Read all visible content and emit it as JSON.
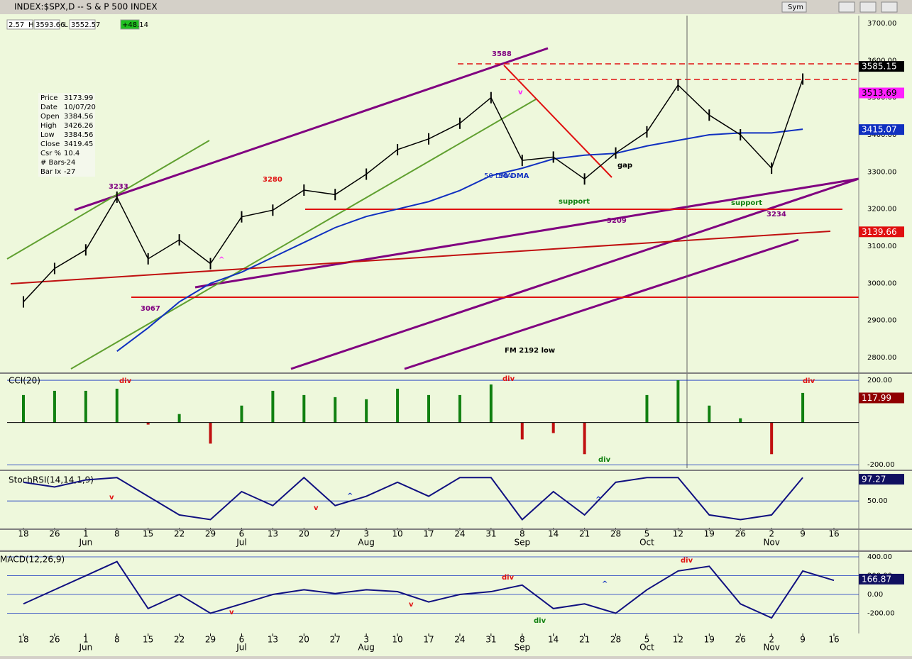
{
  "header": {
    "title": "INDEX:$SPX,D -- S & P 500 INDEX",
    "quote": [
      "2.57",
      "H",
      "3593.66",
      "L",
      "3552.57",
      "+48.14"
    ],
    "buttons": [
      "Sym"
    ]
  },
  "info_box": {
    "rows": [
      [
        "Price",
        "3173.99"
      ],
      [
        "Date",
        "10/07/20"
      ],
      [
        "Open",
        "3384.56"
      ],
      [
        "High",
        "3426.26"
      ],
      [
        "Low",
        "3384.56"
      ],
      [
        "Close",
        "3419.45"
      ],
      [
        "Csr %",
        "10.4"
      ],
      [
        "# Bars",
        "-24"
      ],
      [
        "Bar Ix",
        "-27"
      ]
    ]
  },
  "chart_data": [
    {
      "type": "line",
      "categories": [
        "18",
        "26",
        "1",
        "8",
        "15",
        "22",
        "29",
        "6",
        "13",
        "20",
        "27",
        "3",
        "10",
        "17",
        "24",
        "31",
        "8",
        "14",
        "21",
        "28",
        "5",
        "12",
        "19",
        "26",
        "2",
        "9",
        "16"
      ],
      "months": [
        {
          "category": 2,
          "label": "Jun"
        },
        {
          "category": 7,
          "label": "Jul"
        },
        {
          "category": 11,
          "label": "Aug"
        },
        {
          "category": 16,
          "label": "Sep"
        },
        {
          "category": 20,
          "label": "Oct"
        },
        {
          "category": 24,
          "label": "Nov"
        }
      ],
      "values": [
        2950,
        3040,
        3090,
        3232,
        3066,
        3117,
        3053,
        3179,
        3197,
        3251,
        3239,
        3294,
        3360,
        3389,
        3431,
        3500,
        3331,
        3340,
        3281,
        3351,
        3408,
        3534,
        3453,
        3400,
        3310,
        3550,
        null
      ],
      "color": "#000000",
      "series": [
        {
          "name": "50 DMA",
          "color": "#1030c0",
          "values": [
            null,
            null,
            null,
            2817,
            2880,
            2950,
            3000,
            3030,
            3070,
            3110,
            3150,
            3180,
            3200,
            3220,
            3250,
            3290,
            3310,
            3335,
            3345,
            3350,
            3370,
            3385,
            3400,
            3405,
            3405,
            3415,
            null
          ]
        }
      ],
      "ylim": [
        2760,
        3721
      ],
      "yticks": [
        {
          "value": 2800,
          "label": "2800.00"
        },
        {
          "value": 2900,
          "label": "2900.00"
        },
        {
          "value": 3000,
          "label": "3000.00"
        },
        {
          "value": 3100,
          "label": "3100.00"
        },
        {
          "value": 3200,
          "label": "3200.00"
        },
        {
          "value": 3300,
          "label": "3300.00"
        },
        {
          "value": 3400,
          "label": "3400.00"
        },
        {
          "value": 3500,
          "label": "3500.00"
        },
        {
          "value": 3600,
          "label": "3600.00"
        },
        {
          "value": 3700,
          "label": "3700.00"
        }
      ],
      "markers": [
        {
          "value": 3585.15,
          "color": "#000000"
        },
        {
          "value": 3513.69,
          "color": "#ff20ff"
        },
        {
          "value": 3415.07,
          "color": "#1030c0"
        },
        {
          "value": 3139.66,
          "color": "#e01010"
        }
      ],
      "annotations": [
        {
          "text": "3588",
          "color": "#800080"
        },
        {
          "text": "3233",
          "color": "#800080"
        },
        {
          "text": "3280",
          "color": "#e01010"
        },
        {
          "text": "3067",
          "color": "#800080"
        },
        {
          "text": "50 DMA",
          "color": "#1030c0"
        },
        {
          "text": "support",
          "color": "#108010"
        },
        {
          "text": "support",
          "color": "#108010"
        },
        {
          "text": "3209",
          "color": "#800080"
        },
        {
          "text": "3234",
          "color": "#800080"
        },
        {
          "text": "gap",
          "color": "#000000"
        },
        {
          "text": "FM 2192 low",
          "color": "#000000"
        },
        {
          "text": "v",
          "color": "#ff20ff"
        },
        {
          "text": "^",
          "color": "#ff20ff"
        }
      ]
    },
    {
      "type": "histogram",
      "title": "CCI(20)",
      "values": [
        130,
        150,
        150,
        160,
        -10,
        40,
        -100,
        80,
        150,
        130,
        120,
        110,
        160,
        130,
        130,
        180,
        -80,
        -50,
        -150,
        0,
        130,
        200,
        80,
        20,
        -150,
        140,
        null
      ],
      "colors": {
        "positive": "#108010",
        "negative": "#c01010"
      },
      "ylim": [
        -223,
        227
      ],
      "yticks": [
        {
          "value": 200,
          "label": "200.00"
        },
        {
          "value": -200,
          "label": "-200.00"
        }
      ],
      "markers": [
        {
          "value": 117.99,
          "color": "#900000"
        }
      ],
      "annotations": [
        {
          "text": "div",
          "color": "#e01010"
        },
        {
          "text": "div",
          "color": "#e01010"
        },
        {
          "text": "div",
          "color": "#108010"
        },
        {
          "text": "div",
          "color": "#e01010"
        }
      ]
    },
    {
      "type": "line",
      "title": "StochRSI(14,14,1,9)",
      "values": [
        90,
        80,
        95,
        100,
        60,
        20,
        10,
        70,
        40,
        100,
        40,
        60,
        90,
        60,
        100,
        100,
        10,
        70,
        20,
        90,
        100,
        100,
        20,
        10,
        20,
        100,
        null
      ],
      "color": "#101080",
      "ylim": [
        -9,
        108
      ],
      "yticks": [
        {
          "value": 50,
          "label": "50.00"
        }
      ],
      "markers": [
        {
          "value": 97.27,
          "color": "#101060"
        }
      ],
      "annotations": [
        {
          "text": "v",
          "color": "#e01010"
        },
        {
          "text": "v",
          "color": "#e01010"
        },
        {
          "text": "^",
          "color": "#1030c0"
        },
        {
          "text": "^",
          "color": "#1030c0"
        }
      ]
    },
    {
      "type": "line",
      "title": "MACD(12,26,9)",
      "values": [
        -100,
        50,
        200,
        350,
        -150,
        0,
        -200,
        -100,
        0,
        50,
        10,
        50,
        30,
        -80,
        0,
        30,
        100,
        -150,
        -100,
        -200,
        50,
        250,
        300,
        -100,
        -250,
        250,
        150
      ],
      "color": "#101080",
      "ylim": [
        -415,
        438
      ],
      "yticks": [
        {
          "value": 400,
          "label": "400.00"
        },
        {
          "value": 200,
          "label": "200.00"
        },
        {
          "value": 0,
          "label": "0.00"
        },
        {
          "value": -200,
          "label": "-200.00"
        }
      ],
      "markers": [
        {
          "value": 166.87,
          "color": "#101060"
        }
      ],
      "annotations": [
        {
          "text": "div",
          "color": "#e01010"
        },
        {
          "text": "div",
          "color": "#e01010"
        },
        {
          "text": "div",
          "color": "#108010"
        },
        {
          "text": "v",
          "color": "#e01010"
        },
        {
          "text": "v",
          "color": "#e01010"
        },
        {
          "text": "^",
          "color": "#1030c0"
        }
      ]
    }
  ]
}
